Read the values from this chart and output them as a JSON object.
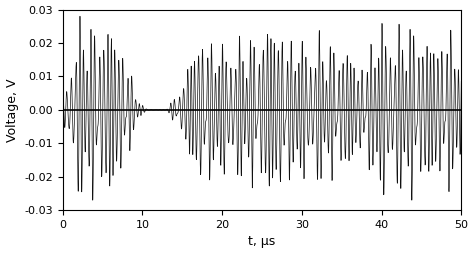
{
  "title": "",
  "xlabel": "t, μs",
  "ylabel": "Voltage, V",
  "xlim": [
    0,
    50
  ],
  "ylim": [
    -0.03,
    0.03
  ],
  "xticks": [
    0,
    10,
    20,
    30,
    40,
    50
  ],
  "yticks": [
    -0.03,
    -0.02,
    -0.01,
    0,
    0.01,
    0.02,
    0.03
  ],
  "grid_xticks": [
    10,
    20,
    30,
    40
  ],
  "grid_yticks": [
    -0.02,
    -0.01,
    0.0,
    0.01,
    0.02
  ],
  "grid_color": "#aaaaaa",
  "line_color": "#111111",
  "bg_color": "#ffffff",
  "figsize": [
    4.74,
    2.54
  ],
  "dpi": 100
}
